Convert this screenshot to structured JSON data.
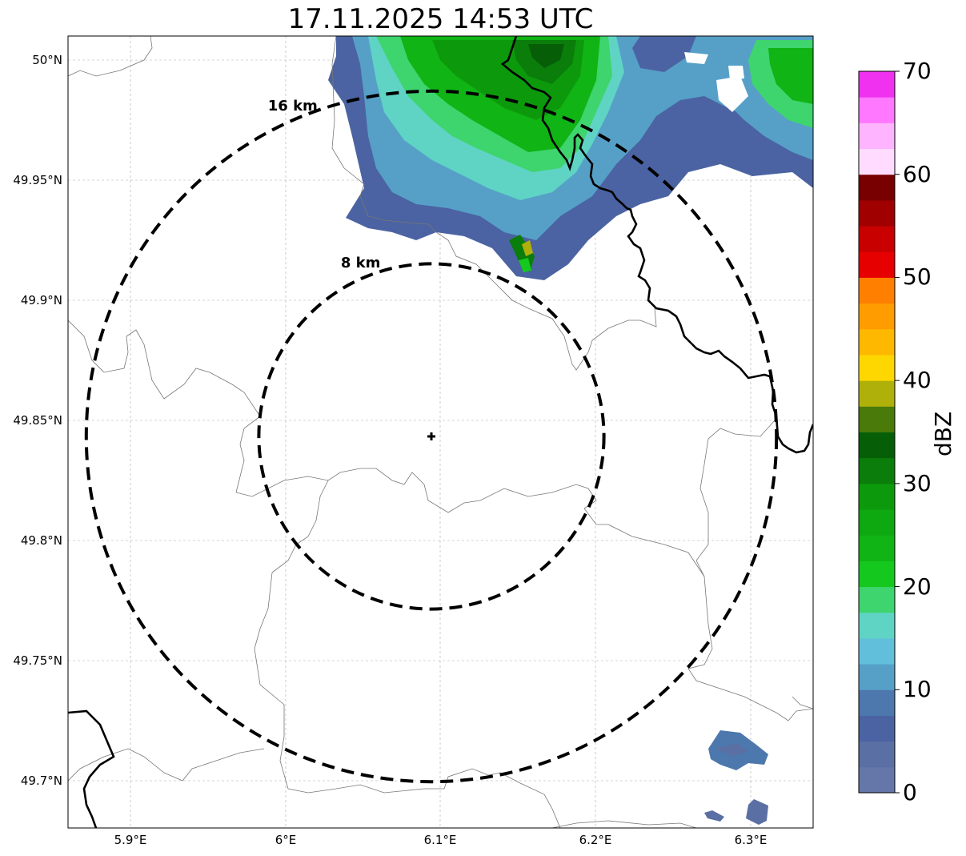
{
  "title": "17.11.2025 14:53 UTC",
  "lat_ticks": [
    "50°N",
    "49.95°N",
    "49.9°N",
    "49.85°N",
    "49.8°N",
    "49.75°N",
    "49.7°N"
  ],
  "lon_ticks": [
    "5.9°E",
    "6°E",
    "6.1°E",
    "6.2°E",
    "6.3°E"
  ],
  "range_rings": [
    {
      "label": "16 km",
      "radius_km": 16
    },
    {
      "label": "8 km",
      "radius_km": 8
    }
  ],
  "radar_site": {
    "lon": 6.095,
    "lat": 49.843
  },
  "colorbar": {
    "label": "dBZ",
    "ticks": [
      "0",
      "10",
      "20",
      "30",
      "40",
      "50",
      "60",
      "70"
    ],
    "min": 0,
    "max": 70,
    "step": 2.5,
    "colors": [
      "#6577a8",
      "#5a6fa3",
      "#4b63a2",
      "#4d78ad",
      "#56a0c8",
      "#62bfdc",
      "#5fd4c4",
      "#3ed46e",
      "#14c81e",
      "#10b414",
      "#0ea810",
      "#0c9a0c",
      "#0a7d0a",
      "#065f06",
      "#4a7a0a",
      "#b0b00a",
      "#ffd700",
      "#ffb800",
      "#ff9c00",
      "#ff7f00",
      "#e60000",
      "#c80000",
      "#a00000",
      "#780000",
      "#ffdcff",
      "#ffb4ff",
      "#ff78ff",
      "#f032f0"
    ]
  }
}
